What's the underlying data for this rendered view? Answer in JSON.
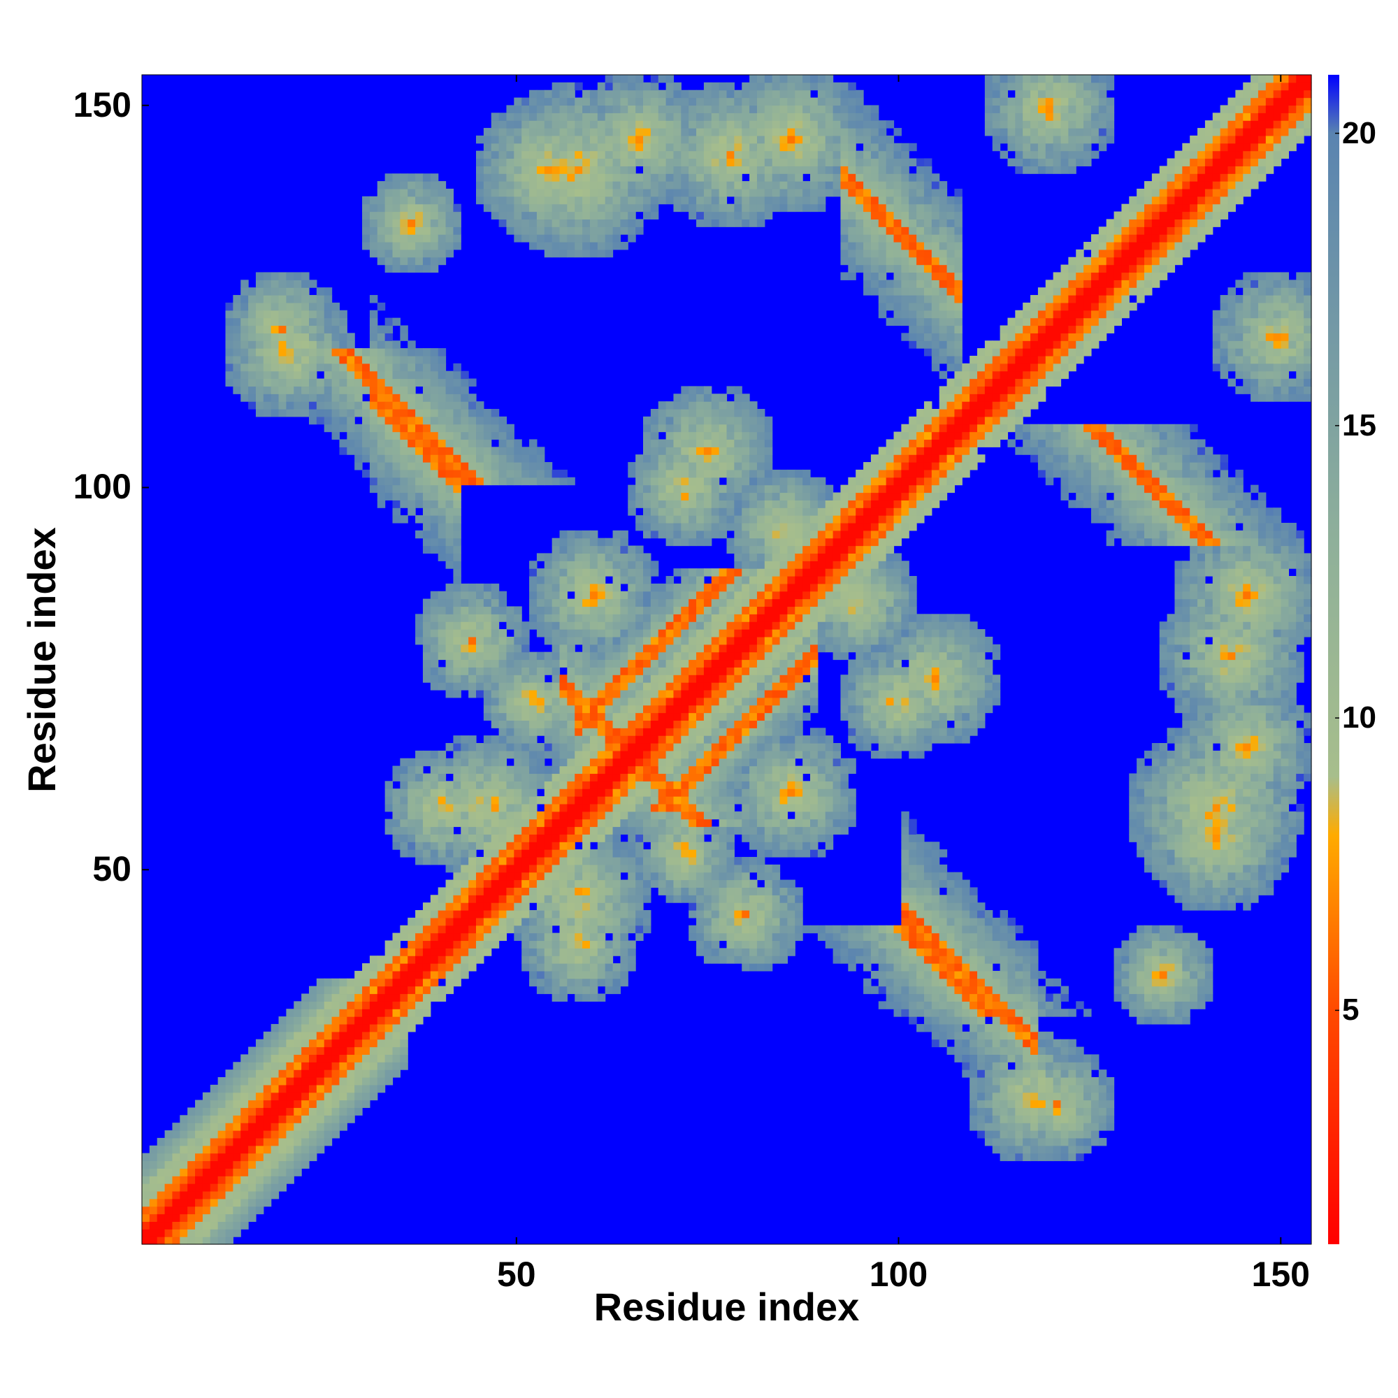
{
  "chart_data": {
    "type": "heatmap",
    "title": "",
    "xlabel": "Residue index",
    "ylabel": "Residue index",
    "n_residues": 154,
    "xlim": [
      1,
      154
    ],
    "ylim": [
      1,
      154
    ],
    "x_ticks": [
      50,
      100,
      150
    ],
    "y_ticks": [
      50,
      100,
      150
    ],
    "colorbar": {
      "range": [
        1,
        21
      ],
      "ticks": [
        5,
        10,
        15,
        20
      ],
      "stops": [
        {
          "value": 1,
          "color": "#ff0000"
        },
        {
          "value": 5,
          "color": "#ff4a00"
        },
        {
          "value": 8,
          "color": "#ffab00"
        },
        {
          "value": 9,
          "color": "#a7be8c"
        },
        {
          "value": 13,
          "color": "#8fb09a"
        },
        {
          "value": 20,
          "color": "#5a84b0"
        },
        {
          "value": 21,
          "color": "#0000ff"
        }
      ]
    },
    "cutoff_color": "#0000ff",
    "diagonal": {
      "description": "Symmetric distance map; distance near diagonal ~1-4"
    },
    "contact_bands": [
      {
        "i": [
          1,
          35
        ],
        "j": [
          1,
          35
        ],
        "offset": 0,
        "type": "diagonal-helix",
        "min": 4
      },
      {
        "i": [
          31,
          42
        ],
        "j": [
          101,
          114
        ],
        "type": "antiparallel",
        "min": 6
      },
      {
        "i": [
          93,
          108
        ],
        "j": [
          126,
          141
        ],
        "type": "antiparallel",
        "min": 6
      },
      {
        "i": [
          100,
          112
        ],
        "j": [
          32,
          44
        ],
        "type": "antiparallel",
        "min": 6
      },
      {
        "i": [
          124,
          141
        ],
        "j": [
          93,
          108
        ],
        "type": "antiparallel",
        "min": 6
      },
      {
        "i": [
          65,
          73
        ],
        "j": [
          56,
          66
        ],
        "type": "antiparallel",
        "min": 6
      },
      {
        "i": [
          56,
          66
        ],
        "j": [
          65,
          73
        ],
        "type": "antiparallel",
        "min": 6
      },
      {
        "i": [
          78,
          83
        ],
        "j": [
          64,
          73
        ],
        "type": "parallel",
        "min": 6
      },
      {
        "i": [
          64,
          73
        ],
        "j": [
          78,
          83
        ],
        "type": "parallel",
        "min": 6
      },
      {
        "i": [
          53,
          60
        ],
        "j": [
          140,
          150
        ],
        "type": "patch",
        "min": 6
      },
      {
        "i": [
          140,
          150
        ],
        "j": [
          53,
          60
        ],
        "type": "patch",
        "min": 6
      }
    ]
  }
}
